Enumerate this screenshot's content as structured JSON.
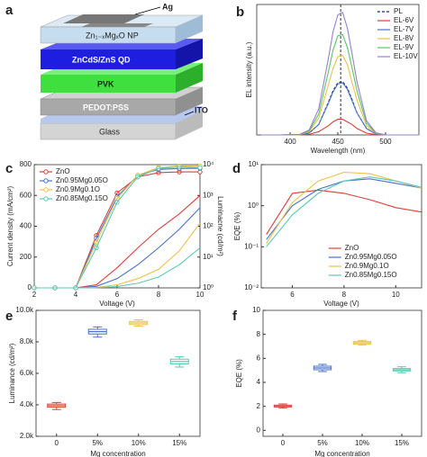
{
  "diagram": {
    "panel": "a",
    "layers": [
      "Zn₁₋ₓMgₓO NP",
      "ZnCdS/ZnS QD",
      "PVK",
      "PEDOT:PSS",
      "Glass"
    ],
    "electrode_top": "Ag",
    "electrode_bottom": "ITO"
  },
  "chart_data": [
    {
      "type": "line",
      "panel": "b",
      "x_label": "Wavelength (nm)",
      "y_label": "EL intensity (a.u.)",
      "xlim": [
        365,
        535
      ],
      "xticks": [
        400,
        450,
        500
      ],
      "ylim": [
        0,
        1
      ],
      "peak_line": 453,
      "legend": "upper right",
      "x": [
        370,
        390,
        410,
        420,
        430,
        440,
        445,
        450,
        455,
        460,
        465,
        470,
        480,
        490,
        500,
        520,
        535
      ],
      "series": [
        {
          "name": "PL",
          "color": "#1f2a6b",
          "dash": true,
          "values": [
            0,
            0,
            0.001,
            0.014,
            0.08,
            0.25,
            0.34,
            0.4,
            0.41,
            0.36,
            0.27,
            0.17,
            0.05,
            0.007,
            0,
            0,
            0
          ]
        },
        {
          "name": "EL-6V",
          "color": "#d9403a",
          "values": [
            0,
            0,
            0,
            0.005,
            0.025,
            0.07,
            0.1,
            0.12,
            0.12,
            0.1,
            0.08,
            0.05,
            0.014,
            0.002,
            0,
            0,
            0
          ]
        },
        {
          "name": "EL-7V",
          "color": "#4a72c8",
          "values": [
            0,
            0,
            0.002,
            0.016,
            0.08,
            0.24,
            0.33,
            0.39,
            0.4,
            0.35,
            0.26,
            0.17,
            0.05,
            0.007,
            0,
            0,
            0
          ]
        },
        {
          "name": "EL-8V",
          "color": "#e8c24a",
          "values": [
            0,
            0,
            0.002,
            0.025,
            0.13,
            0.38,
            0.51,
            0.6,
            0.61,
            0.54,
            0.4,
            0.27,
            0.07,
            0.011,
            0,
            0,
            0
          ]
        },
        {
          "name": "EL-9V",
          "color": "#5cc46b",
          "values": [
            0,
            0,
            0.003,
            0.031,
            0.16,
            0.48,
            0.65,
            0.76,
            0.77,
            0.67,
            0.51,
            0.34,
            0.09,
            0.013,
            0.001,
            0,
            0
          ]
        },
        {
          "name": "EL-10V",
          "color": "#9a7fd0",
          "values": [
            0,
            0,
            0.004,
            0.038,
            0.2,
            0.58,
            0.79,
            0.92,
            0.94,
            0.82,
            0.62,
            0.41,
            0.11,
            0.016,
            0.001,
            0,
            0
          ]
        }
      ]
    },
    {
      "type": "line",
      "panel": "c",
      "x_label": "Voltage (V)",
      "y_label": "Current density (mA/cm²)",
      "y2_label": "Luminacne (cd/m²)",
      "xlim": [
        2,
        10
      ],
      "xticks": [
        2,
        4,
        6,
        8,
        10
      ],
      "ylim": [
        0,
        800
      ],
      "yticks": [
        0,
        200,
        400,
        600,
        800
      ],
      "y2lim": [
        1,
        10000
      ],
      "y2log": true,
      "y2ticks": [
        {
          "value": 1,
          "label": "10⁰"
        },
        {
          "value": 10,
          "label": "10¹"
        },
        {
          "value": 100,
          "label": "10²"
        },
        {
          "value": 1000,
          "label": "10³"
        },
        {
          "value": 10000,
          "label": "10⁴"
        }
      ],
      "legend": "upper left",
      "x": [
        2,
        3,
        4,
        5,
        6,
        7,
        8,
        9,
        10
      ],
      "series": [
        {
          "name": "ZnO",
          "color": "#d9403a",
          "values": [
            0,
            0,
            0,
            20,
            130,
            260,
            380,
            480,
            600
          ],
          "luminance": [
            1,
            1,
            1,
            50,
            1200,
            4000,
            5500,
            5800,
            5800
          ]
        },
        {
          "name": "Zn0.95Mg0.05O",
          "color": "#4a72c8",
          "values": [
            0,
            0,
            0,
            10,
            60,
            150,
            260,
            380,
            520
          ],
          "luminance": [
            1,
            1,
            1,
            40,
            900,
            4500,
            7000,
            7500,
            7600
          ]
        },
        {
          "name": "Zn0.9Mg0.1O",
          "color": "#e8c24a",
          "values": [
            0,
            0,
            0,
            3,
            20,
            60,
            120,
            240,
            420
          ],
          "luminance": [
            1,
            1,
            1,
            30,
            800,
            4500,
            8000,
            9000,
            9000
          ]
        },
        {
          "name": "Zn0.85Mg0.15O",
          "color": "#5cc8b0",
          "values": [
            0,
            0,
            0,
            1,
            8,
            30,
            70,
            150,
            260
          ],
          "luminance": [
            1,
            1,
            1,
            20,
            600,
            4000,
            7500,
            8500,
            8000
          ]
        }
      ]
    },
    {
      "type": "line",
      "panel": "d",
      "x_label": "Voltage (V)",
      "y_label": "EQE (%)",
      "xlim": [
        4.8,
        11
      ],
      "xticks": [
        6,
        8,
        10
      ],
      "ylim": [
        0.01,
        10
      ],
      "ylog": true,
      "yticks": [
        {
          "value": 0.01,
          "label": "10⁻²"
        },
        {
          "value": 0.1,
          "label": "10⁻¹"
        },
        {
          "value": 1,
          "label": "10⁰"
        },
        {
          "value": 10,
          "label": "10¹"
        }
      ],
      "legend": "lower right",
      "x": [
        5,
        6,
        7,
        8,
        9,
        10,
        11
      ],
      "series": [
        {
          "name": "ZnO",
          "color": "#d9403a",
          "values": [
            0.2,
            2.0,
            2.4,
            2.0,
            1.4,
            0.9,
            0.7
          ]
        },
        {
          "name": "Zn0.95Mg0.05O",
          "color": "#4a72c8",
          "values": [
            0.15,
            1.0,
            2.5,
            4.0,
            4.5,
            3.5,
            2.7
          ]
        },
        {
          "name": "Zn0.9Mg0.1O",
          "color": "#e8c24a",
          "values": [
            0.12,
            1.2,
            4.0,
            6.5,
            6.0,
            4.0,
            2.7
          ]
        },
        {
          "name": "Zn0.85Mg0.15O",
          "color": "#5cc8b0",
          "values": [
            0.1,
            0.6,
            2.0,
            4.0,
            5.0,
            4.0,
            2.8
          ]
        }
      ]
    },
    {
      "type": "box",
      "panel": "e",
      "x_label": "Mg concentration",
      "y_label": "Luminance (cd/m²)",
      "categories": [
        "0",
        "5%",
        "10%",
        "15%"
      ],
      "colors": [
        "#d9403a",
        "#4a72c8",
        "#e8c24a",
        "#5cc8b0"
      ],
      "ylim": [
        2000,
        10000
      ],
      "yticks": [
        {
          "value": 2000,
          "label": "2.0k"
        },
        {
          "value": 4000,
          "label": "4.0k"
        },
        {
          "value": 6000,
          "label": "6.0k"
        },
        {
          "value": 8000,
          "label": "8.0k"
        },
        {
          "value": 10000,
          "label": "10.0k"
        }
      ],
      "min": [
        3700,
        8300,
        9000,
        6400
      ],
      "q1": [
        3850,
        8500,
        9100,
        6600
      ],
      "median": [
        3950,
        8650,
        9200,
        6750
      ],
      "q3": [
        4050,
        8800,
        9300,
        6900
      ],
      "max": [
        4150,
        8950,
        9400,
        7050
      ]
    },
    {
      "type": "box",
      "panel": "f",
      "x_label": "Mg concentration",
      "y_label": "EQE (%)",
      "categories": [
        "0",
        "5%",
        "10%",
        "15%"
      ],
      "colors": [
        "#d9403a",
        "#4a72c8",
        "#e8c24a",
        "#5cc8b0"
      ],
      "ylim": [
        -0.5,
        10
      ],
      "yticks": [
        0,
        2,
        4,
        6,
        8,
        10
      ],
      "min": [
        1.85,
        4.9,
        7.1,
        4.8
      ],
      "q1": [
        1.95,
        5.05,
        7.2,
        4.95
      ],
      "median": [
        2.0,
        5.2,
        7.3,
        5.05
      ],
      "q3": [
        2.1,
        5.35,
        7.4,
        5.15
      ],
      "max": [
        2.2,
        5.5,
        7.5,
        5.3
      ]
    }
  ]
}
